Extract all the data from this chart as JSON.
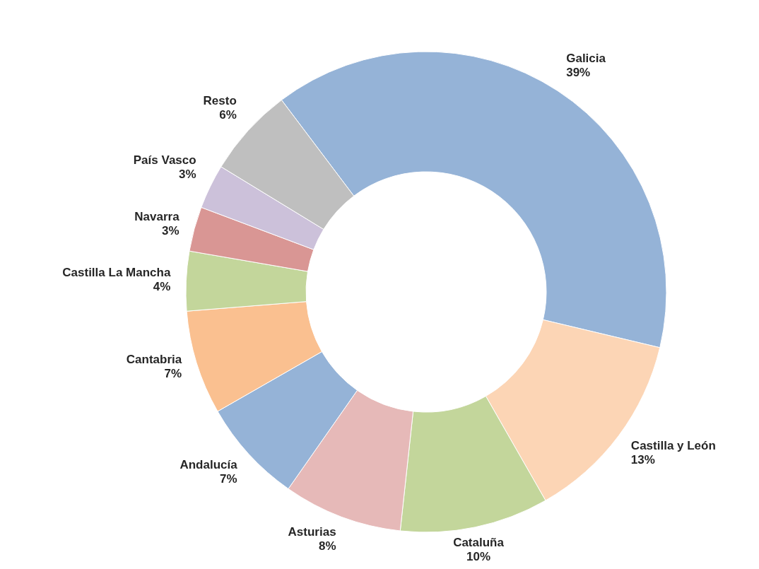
{
  "chart_data": {
    "type": "donut",
    "categories": [
      "Galicia",
      "Castilla y León",
      "Cataluña",
      "Asturias",
      "Andalucía",
      "Cantabria",
      "Castilla La Mancha",
      "Navarra",
      "País Vasco",
      "Resto"
    ],
    "values": [
      39,
      13,
      10,
      8,
      7,
      7,
      4,
      3,
      3,
      6
    ],
    "value_labels": [
      "39%",
      "13%",
      "10%",
      "8%",
      "7%",
      "7%",
      "4%",
      "3%",
      "3%",
      "6%"
    ],
    "colors": [
      "#95b3d7",
      "#fcd5b5",
      "#c3d69b",
      "#e6b9b8",
      "#95b3d7",
      "#fac090",
      "#c3d69b",
      "#d99694",
      "#ccc1da",
      "#bfbfbf"
    ],
    "legend": false
  }
}
